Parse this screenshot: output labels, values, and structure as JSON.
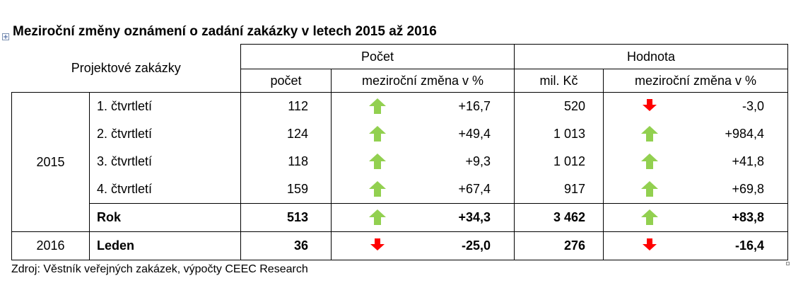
{
  "title": "Meziroční změny oznámení o zadání zakázky v letech 2015 až 2016",
  "table": {
    "corner": "Projektové zakázky",
    "groups": [
      "Počet",
      "Hodnota"
    ],
    "columns": [
      "počet",
      "meziroční změna v %",
      "mil. Kč",
      "meziroční změna v %"
    ],
    "blocks": [
      {
        "year": "2015",
        "rows": [
          {
            "label": "1. čtvrtletí",
            "count": "112",
            "count_change": "+16,7",
            "count_trend": "up",
            "value": "520",
            "value_change": "-3,0",
            "value_trend": "down"
          },
          {
            "label": "2. čtvrtletí",
            "count": "124",
            "count_change": "+49,4",
            "count_trend": "up",
            "value": "1 013",
            "value_change": "+984,4",
            "value_trend": "up"
          },
          {
            "label": "3. čtvrtletí",
            "count": "118",
            "count_change": "+9,3",
            "count_trend": "up",
            "value": "1 012",
            "value_change": "+41,8",
            "value_trend": "up"
          },
          {
            "label": "4. čtvrtletí",
            "count": "159",
            "count_change": "+67,4",
            "count_trend": "up",
            "value": "917",
            "value_change": "+69,8",
            "value_trend": "up"
          },
          {
            "label": "Rok",
            "count": "513",
            "count_change": "+34,3",
            "count_trend": "up",
            "value": "3 462",
            "value_change": "+83,8",
            "value_trend": "up"
          }
        ]
      },
      {
        "year": "2016",
        "rows": [
          {
            "label": "Leden",
            "count": "36",
            "count_change": "-25,0",
            "count_trend": "down",
            "value": "276",
            "value_change": "-16,4",
            "value_trend": "down"
          }
        ]
      }
    ]
  },
  "source": "Zdroj: Věstník veřejných zakázek, výpočty CEEC Research"
}
